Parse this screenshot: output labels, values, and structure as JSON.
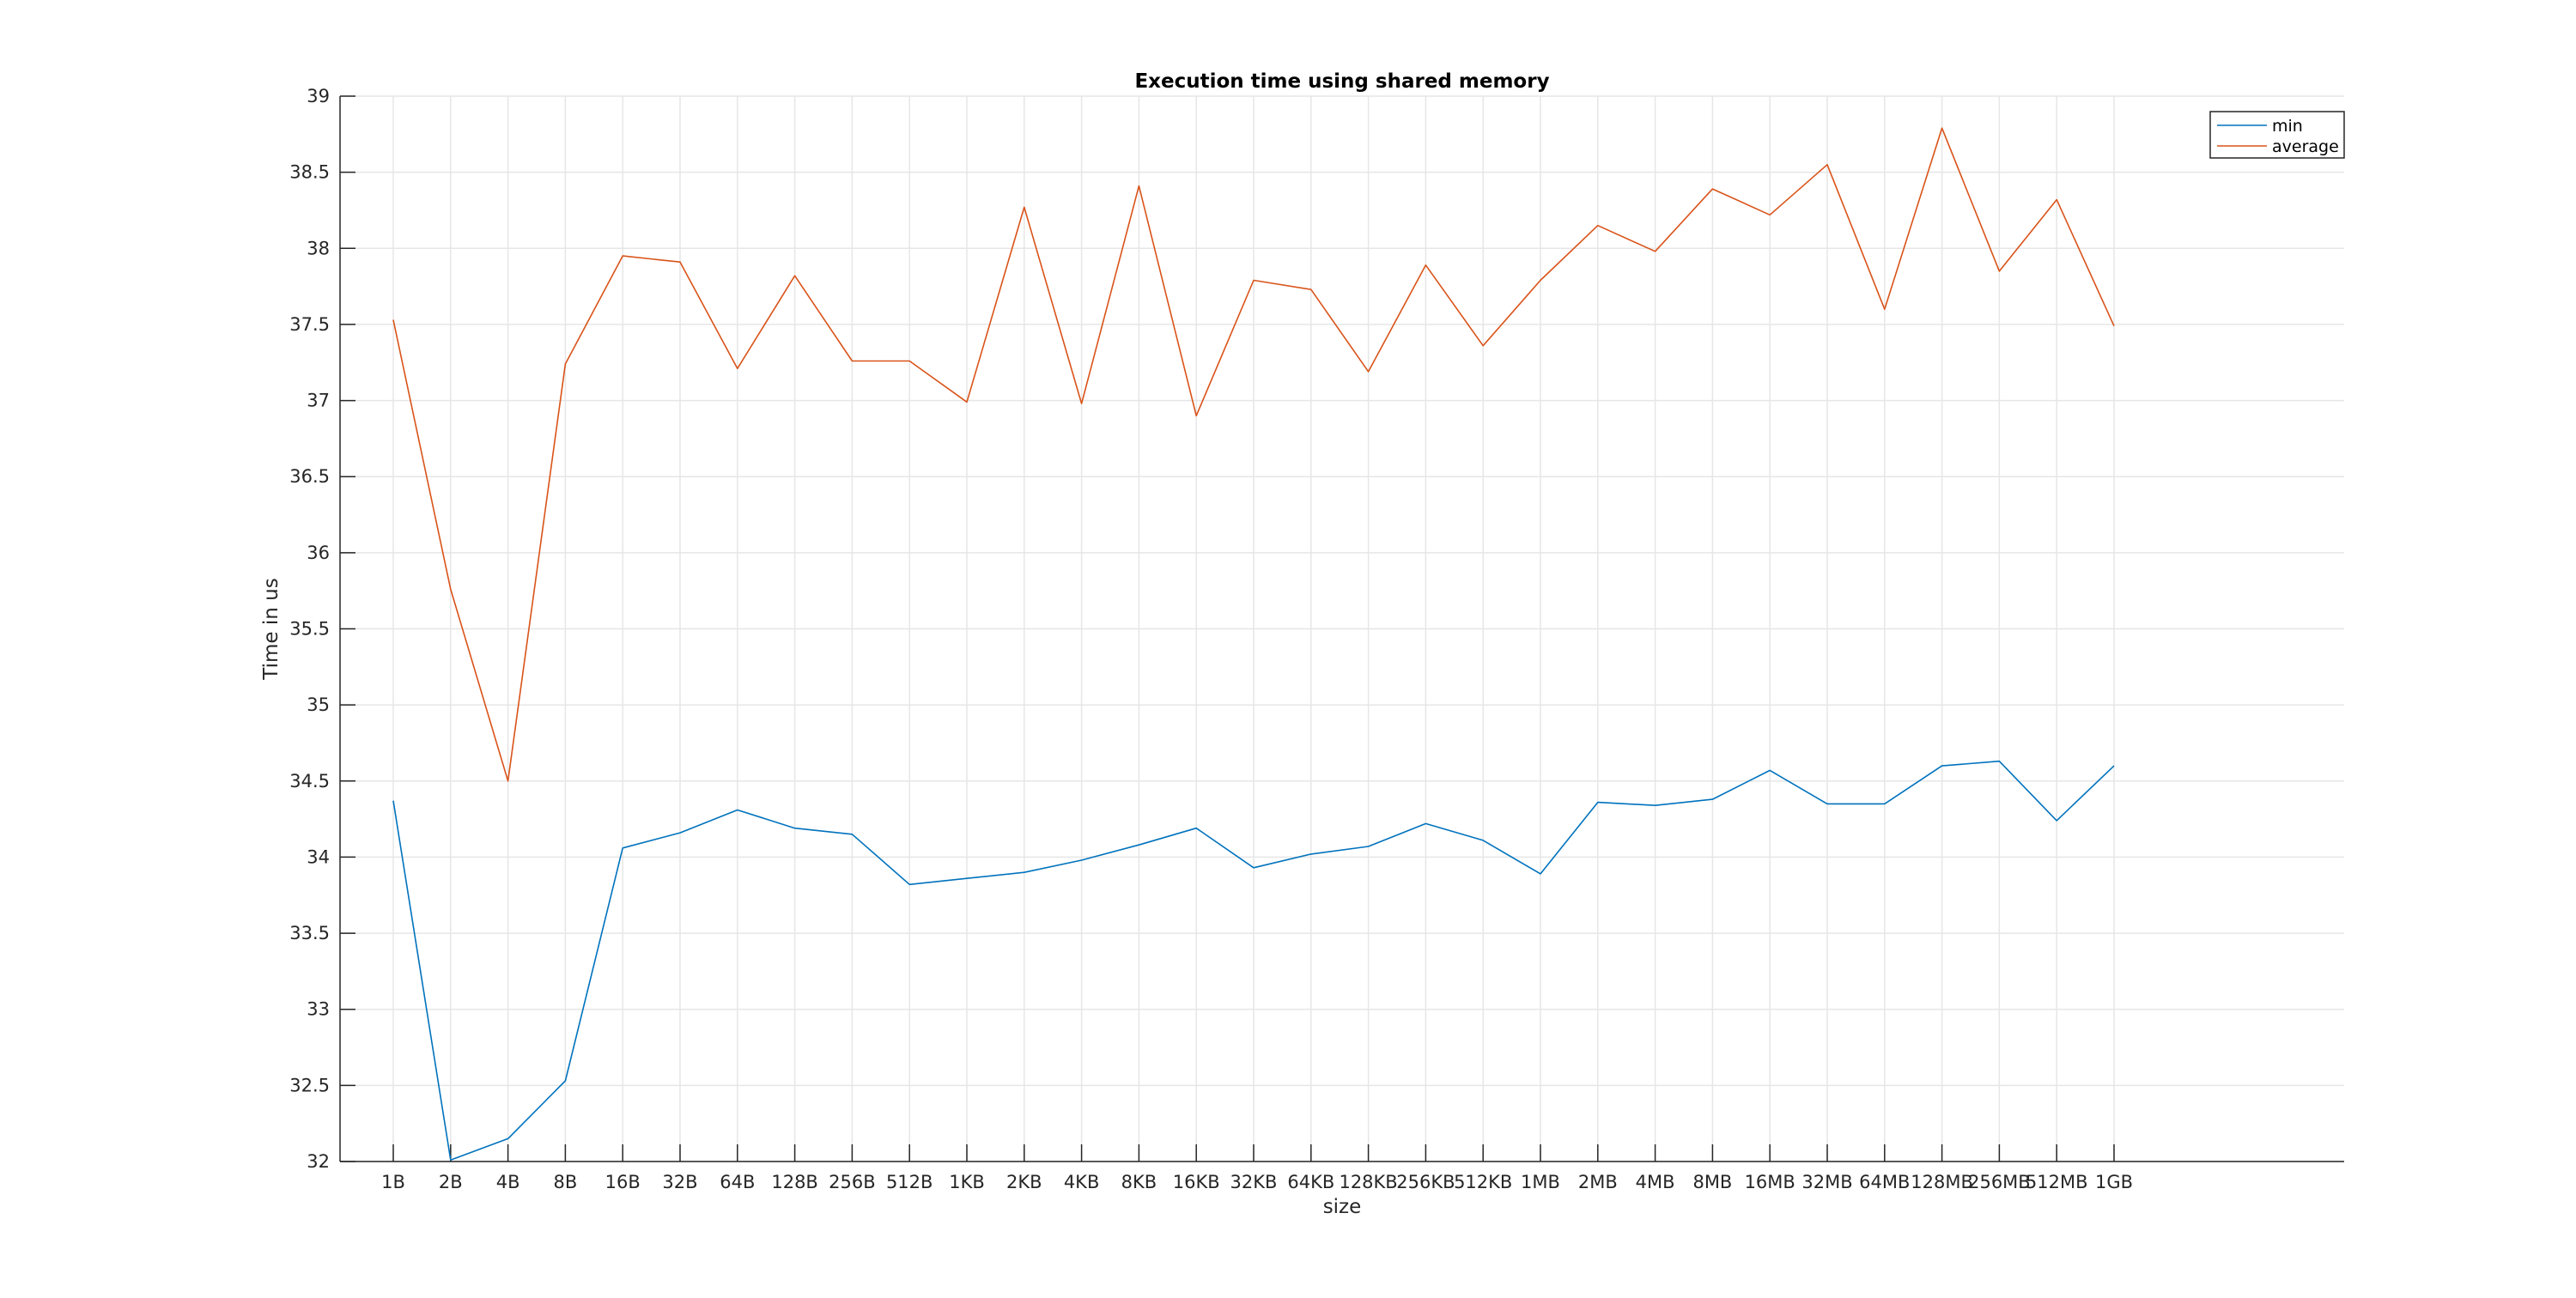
{
  "chart_data": {
    "type": "line",
    "title": "Execution time using shared memory",
    "xlabel": "size",
    "ylabel": "Time in us",
    "ylim": [
      32,
      39
    ],
    "yticks": [
      "32",
      "32.5",
      "33",
      "33.5",
      "34",
      "34.5",
      "35",
      "35.5",
      "36",
      "36.5",
      "37",
      "37.5",
      "38",
      "38.5",
      "39"
    ],
    "categories": [
      "1B",
      "2B",
      "4B",
      "8B",
      "16B",
      "32B",
      "64B",
      "128B",
      "256B",
      "512B",
      "1KB",
      "2KB",
      "4KB",
      "8KB",
      "16KB",
      "32KB",
      "64KB",
      "128KB",
      "256KB",
      "512KB",
      "1MB",
      "2MB",
      "4MB",
      "8MB",
      "16MB",
      "32MB",
      "64MB",
      "128MB",
      "256MB",
      "512MB",
      "1GB"
    ],
    "grid": true,
    "legend_position": "top-right",
    "series": [
      {
        "name": "min",
        "color": "#0072BD",
        "values": [
          34.37,
          32.01,
          32.15,
          32.53,
          34.06,
          34.16,
          34.31,
          34.19,
          34.15,
          33.82,
          33.86,
          33.9,
          33.98,
          34.08,
          34.19,
          33.93,
          34.02,
          34.07,
          34.22,
          34.11,
          33.89,
          34.36,
          34.34,
          34.38,
          34.57,
          34.35,
          34.35,
          34.6,
          34.63,
          34.24,
          34.6
        ]
      },
      {
        "name": "average",
        "color": "#D95319",
        "values": [
          37.53,
          35.76,
          34.5,
          37.24,
          37.95,
          37.91,
          37.21,
          37.82,
          37.26,
          37.26,
          36.99,
          38.27,
          36.98,
          38.41,
          36.9,
          37.79,
          37.73,
          37.19,
          37.89,
          37.36,
          37.79,
          38.15,
          37.98,
          38.39,
          38.22,
          38.55,
          37.6,
          38.79,
          37.85,
          38.32,
          37.49
        ]
      }
    ]
  }
}
